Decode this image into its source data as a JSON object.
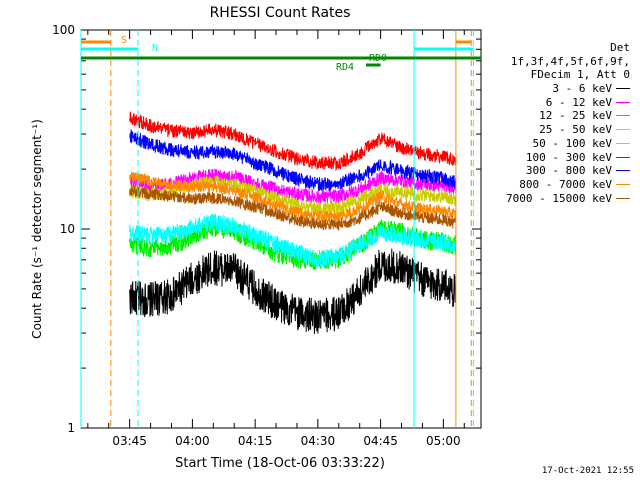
{
  "chart_data": {
    "type": "line",
    "title": "RHESSI Count Rates",
    "xlabel": "Start Time (18-Oct-06 03:33:22)",
    "ylabel": "Count Rate (s⁻¹ detector segment⁻¹)",
    "x_range": [
      "03:33:22",
      "05:09:00"
    ],
    "x_ticks": [
      "03:45",
      "04:00",
      "04:15",
      "04:30",
      "04:45",
      "05:00"
    ],
    "y_scale": "log",
    "ylim": [
      1,
      100
    ],
    "y_ticks": [
      "1",
      "10",
      "100"
    ],
    "grid": false,
    "legend_position": "right",
    "legend_header": [
      "Det 1f,3f,4f,5f,6f,9f,",
      "FDecim 1, Att 0"
    ],
    "series_x": [
      "03:45",
      "03:50",
      "03:55",
      "04:00",
      "04:05",
      "04:10",
      "04:15",
      "04:20",
      "04:25",
      "04:30",
      "04:35",
      "04:40",
      "04:45",
      "04:50",
      "04:55",
      "05:00",
      "05:03"
    ],
    "series": [
      {
        "name": "3 - 6 keV",
        "color": "#000000",
        "values": [
          4.5,
          4.4,
          4.6,
          5.6,
          6.4,
          6.2,
          5.0,
          4.2,
          3.8,
          3.6,
          3.8,
          4.8,
          6.6,
          6.4,
          5.5,
          5.2,
          4.9
        ]
      },
      {
        "name": "6 - 12 keV",
        "color": "#ff00ff",
        "values": [
          17.5,
          16.5,
          16.8,
          18.0,
          18.6,
          18.2,
          17.0,
          15.8,
          15.0,
          14.5,
          14.6,
          15.8,
          18.0,
          17.5,
          16.8,
          16.5,
          16.3
        ]
      },
      {
        "name": "12 - 25 keV",
        "color": "#00ee00",
        "values": [
          8.4,
          8.0,
          8.2,
          9.3,
          10.2,
          9.8,
          8.6,
          7.6,
          7.1,
          6.9,
          7.1,
          8.2,
          10.0,
          9.6,
          8.8,
          8.6,
          8.3
        ]
      },
      {
        "name": "25 - 50 keV",
        "color": "#00ffff",
        "values": [
          9.6,
          9.2,
          9.4,
          10.2,
          10.8,
          10.4,
          9.3,
          8.4,
          7.6,
          7.1,
          7.3,
          8.4,
          9.6,
          9.3,
          8.8,
          8.6,
          8.2
        ]
      },
      {
        "name": "50 - 100 keV",
        "color": "#cccc00",
        "values": [
          15.6,
          14.8,
          15.2,
          16.8,
          17.3,
          16.6,
          15.4,
          14.2,
          13.1,
          12.6,
          12.8,
          14.2,
          15.6,
          15.3,
          14.8,
          14.6,
          14.1
        ]
      },
      {
        "name": "100 - 300 keV",
        "color": "#ff0000",
        "values": [
          36.5,
          33.0,
          31.0,
          30.5,
          31.5,
          30.0,
          27.0,
          24.5,
          22.5,
          21.5,
          21.5,
          24.0,
          28.5,
          25.5,
          24.0,
          23.0,
          22.0
        ]
      },
      {
        "name": "300 - 800 keV",
        "color": "#0000ff",
        "values": [
          29.5,
          26.5,
          25.0,
          24.2,
          24.7,
          23.8,
          21.5,
          19.5,
          17.8,
          16.8,
          16.8,
          18.5,
          21.0,
          19.5,
          18.5,
          18.0,
          17.2
        ]
      },
      {
        "name": "800 - 7000 keV",
        "color": "#ff8800",
        "values": [
          18.7,
          17.3,
          16.6,
          16.2,
          16.4,
          15.6,
          14.4,
          13.2,
          12.1,
          11.6,
          11.6,
          12.6,
          14.6,
          13.3,
          12.6,
          12.3,
          11.8
        ]
      },
      {
        "name": "7000 - 15000 keV",
        "color": "#aa5500",
        "values": [
          15.7,
          15.0,
          14.6,
          14.2,
          14.3,
          13.8,
          12.9,
          11.9,
          11.0,
          10.6,
          10.5,
          11.3,
          12.9,
          12.0,
          11.4,
          11.1,
          10.7
        ]
      }
    ],
    "annotations": [
      {
        "text": "S",
        "color": "#ff8800"
      },
      {
        "text": "N",
        "color": "#00ffff"
      },
      {
        "text": "RD0",
        "color": "#008800"
      },
      {
        "text": "RD4",
        "color": "#008800"
      }
    ],
    "vertical_markers": [
      {
        "time": "03:33:22",
        "color": "#00ffff",
        "style": "solid"
      },
      {
        "time": "03:40:30",
        "color": "#ff8800",
        "style": "dashed"
      },
      {
        "time": "03:47:00",
        "color": "#00ffff",
        "style": "dashed"
      },
      {
        "time": "04:53:00",
        "color": "#00ffff",
        "style": "solid"
      },
      {
        "time": "05:03:00",
        "color": "#ff8800",
        "style": "solid"
      },
      {
        "time": "05:06:40",
        "color": "#ff8800",
        "style": "dashed"
      },
      {
        "time": "05:07:10",
        "color": "#00ffff",
        "style": "dashed"
      }
    ],
    "flag_bars": [
      {
        "label": "S",
        "color": "#ff8800",
        "segments": [
          [
            "03:33:22",
            "03:40:30"
          ],
          [
            "05:03:00",
            "05:06:40"
          ]
        ]
      },
      {
        "label": "N",
        "color": "#00ffff",
        "segments": [
          [
            "03:33:22",
            "03:47:00"
          ],
          [
            "04:53:00",
            "05:07:10"
          ]
        ]
      },
      {
        "label": "RD0",
        "color": "#008800",
        "segments": [
          [
            "03:33:22",
            "05:09:00"
          ]
        ]
      },
      {
        "label": "RD4",
        "color": "#008800",
        "segments": [
          [
            "04:41:30",
            "04:45:00"
          ]
        ]
      }
    ]
  },
  "timestamp": "17-Oct-2021 12:55"
}
